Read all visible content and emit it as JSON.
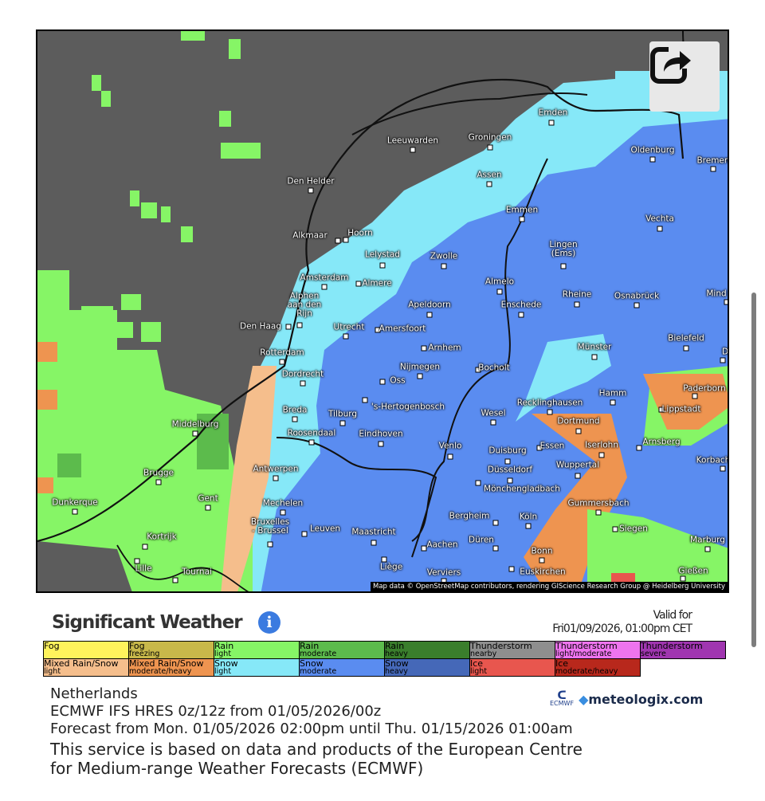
{
  "map": {
    "attribution": "Map data © OpenStreetMap contributors, rendering GIScience Research Group @ Heidelberg University",
    "share_icon": "share-icon",
    "cities": [
      "Emden",
      "Leeuwarden",
      "Groningen",
      "Oldenburg",
      "Bremen",
      "Den Helder",
      "Assen",
      "Emmen",
      "Vechta",
      "Alkmaar",
      "Hoorn",
      "Lingen\n(Ems)",
      "Lelystad",
      "Zwolle",
      "Amsterdam",
      "Almere",
      "Almelo",
      "Alphen\naan den\nRijn",
      "Apeldoorn",
      "Enschede",
      "Rheine",
      "Osnabrück",
      "Mind",
      "Den Haag",
      "Utrecht",
      "Amersfoort",
      "Bielefeld",
      "Münster",
      "Arnhem",
      "Rotterdam",
      "Nijmegen",
      "Bocholt",
      "Dordrecht",
      "Oss",
      "Paderborn",
      "Hamm",
      "Recklinghausen",
      "Breda",
      "Tilburg",
      "'s-Hertogenbosch",
      "Wesel",
      "Dortmund",
      "Lippstadt",
      "Middelburg",
      "Roosendaal",
      "Eindhoven",
      "Arnsberg",
      "Iserlohn",
      "Venlo",
      "Duisburg",
      "Essen",
      "Korbach",
      "Antwerpen",
      "Brugge",
      "Düsseldorf",
      "Wuppertal",
      "Mönchengladbach",
      "Dunkerque",
      "Gent",
      "Mechelen",
      "Gummersbach",
      "Bergheim",
      "Köln",
      "Bruxelles\n- Brussel",
      "Leuven",
      "Maastricht",
      "Siegen",
      "Kortrijk",
      "Marburg",
      "Düren",
      "Aachen",
      "Bonn",
      "Lille",
      "Liège",
      "Tournai",
      "Verviers",
      "Euskirchen",
      "Gießen",
      "D"
    ]
  },
  "header": {
    "title": "Significant Weather",
    "info_icon": "info-icon",
    "valid_label": "Valid for",
    "valid_time": "Fri01/09/2026, 01:00pm CET"
  },
  "legend": [
    {
      "label": "Fog",
      "sub": "",
      "color": "#fff35c"
    },
    {
      "label": "Fog",
      "sub": "freezing",
      "color": "#c8b84a"
    },
    {
      "label": "Rain",
      "sub": "light",
      "color": "#86f566"
    },
    {
      "label": "Rain",
      "sub": "moderate",
      "color": "#5cbb4c"
    },
    {
      "label": "Rain",
      "sub": "heavy",
      "color": "#3a7e2c"
    },
    {
      "label": "Thunderstorm",
      "sub": "nearby",
      "color": "#8e8e8e"
    },
    {
      "label": "Thunderstorm",
      "sub": "light/moderate",
      "color": "#ee74ee"
    },
    {
      "label": "Thunderstorm",
      "sub": "severe",
      "color": "#a036b0"
    },
    {
      "label": "Mixed Rain/Snow",
      "sub": "light",
      "color": "#f5be8c"
    },
    {
      "label": "Mixed Rain/Snow",
      "sub": "moderate/heavy",
      "color": "#ee9450"
    },
    {
      "label": "Snow",
      "sub": "light",
      "color": "#86e8f8"
    },
    {
      "label": "Snow",
      "sub": "moderate",
      "color": "#5a8cf0"
    },
    {
      "label": "Snow",
      "sub": "heavy",
      "color": "#4568b8"
    },
    {
      "label": "Ice",
      "sub": "light",
      "color": "#e8564e"
    },
    {
      "label": "Ice",
      "sub": "moderate/heavy",
      "color": "#b8281c"
    }
  ],
  "footer": {
    "region": "Netherlands",
    "model": "ECMWF IFS HRES 0z/12z from 01/05/2026/00z",
    "forecast": "Forecast from Mon. 01/05/2026 02:00pm until Thu. 01/15/2026 01:00am",
    "notice_1": "This service is based on data and products of the European Centre",
    "notice_2": "for Medium-range Weather Forecasts (ECMWF)",
    "ecmwf_logo": "ECMWF",
    "meteologix_logo": "meteologix.com"
  }
}
